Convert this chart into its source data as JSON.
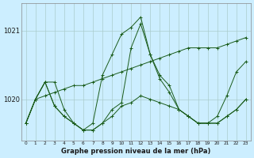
{
  "title": "Graphe pression niveau de la mer (hPa)",
  "background_color": "#cceeff",
  "grid_color": "#aacccc",
  "line_color": "#1a5c1a",
  "x_labels": [
    "0",
    "1",
    "2",
    "3",
    "4",
    "5",
    "6",
    "7",
    "8",
    "9",
    "10",
    "11",
    "12",
    "13",
    "14",
    "15",
    "16",
    "17",
    "18",
    "19",
    "20",
    "21",
    "22",
    "23"
  ],
  "yticks": [
    1020,
    1021
  ],
  "ylim": [
    1019.4,
    1021.4
  ],
  "xlim": [
    -0.5,
    23.5
  ],
  "series": {
    "line_peak": [
      1019.65,
      1020.0,
      1020.25,
      1020.25,
      1019.85,
      1019.65,
      1019.55,
      1019.65,
      1020.35,
      1020.65,
      1020.95,
      1021.05,
      1021.2,
      1020.65,
      1020.35,
      1020.2,
      1019.85,
      1019.75,
      1019.65,
      1019.65,
      1019.75,
      1020.05,
      1020.4,
      1020.55
    ],
    "line_flat": [
      1019.65,
      1020.0,
      1020.05,
      1020.1,
      1020.15,
      1020.2,
      1020.2,
      1020.25,
      1020.3,
      1020.35,
      1020.4,
      1020.45,
      1020.5,
      1020.55,
      1020.6,
      1020.65,
      1020.7,
      1020.75,
      1020.75,
      1020.75,
      1020.75,
      1020.8,
      1020.85,
      1020.9
    ],
    "line_dip": [
      1019.65,
      1020.0,
      1020.25,
      1019.9,
      1019.75,
      1019.65,
      1019.55,
      1019.55,
      1019.65,
      1019.85,
      1019.95,
      1020.75,
      1021.1,
      1020.65,
      1020.3,
      1020.1,
      1019.85,
      1019.75,
      1019.65,
      1019.65,
      1019.65,
      1019.75,
      1019.85,
      1020.0
    ],
    "line_low": [
      1019.65,
      1020.0,
      1020.25,
      1019.9,
      1019.75,
      1019.65,
      1019.55,
      1019.55,
      1019.65,
      1019.75,
      1019.9,
      1019.95,
      1020.05,
      1020.0,
      1019.95,
      1019.9,
      1019.85,
      1019.75,
      1019.65,
      1019.65,
      1019.65,
      1019.75,
      1019.85,
      1020.0
    ]
  }
}
